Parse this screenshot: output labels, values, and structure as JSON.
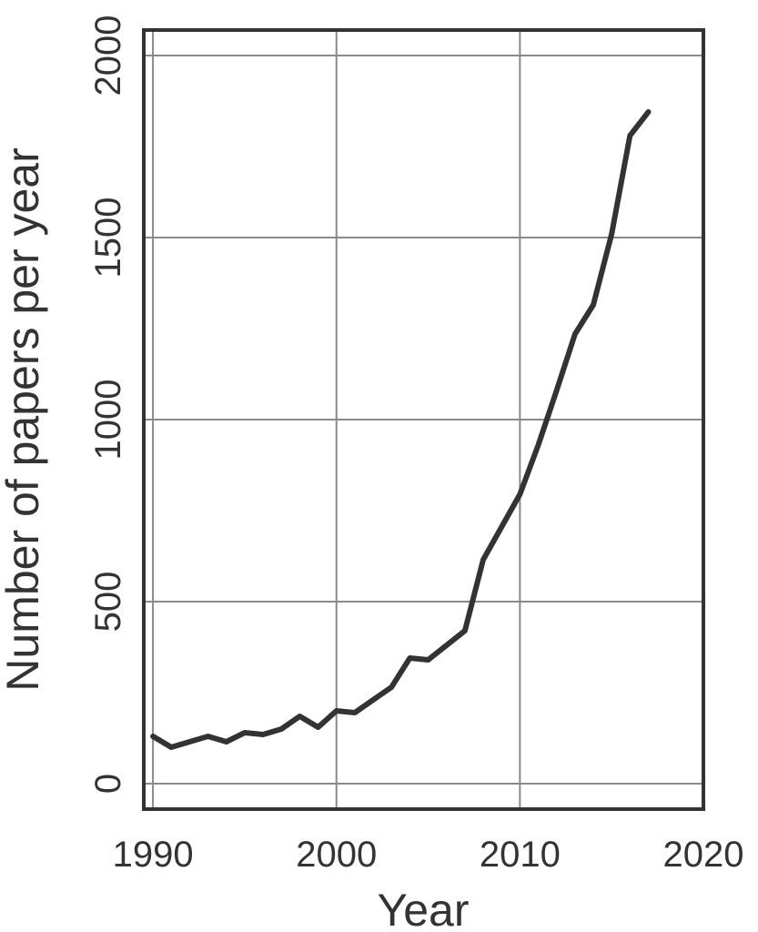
{
  "chart_data": {
    "type": "line",
    "title": "",
    "xlabel": "Year",
    "ylabel": "Number of papers per year",
    "xlim": [
      1989.5,
      2020
    ],
    "ylim": [
      -70,
      2070
    ],
    "xticks": [
      1990,
      2000,
      2010,
      2020
    ],
    "yticks": [
      0,
      500,
      1000,
      1500,
      2000
    ],
    "grid": true,
    "legend": "none",
    "line_color": "#333333",
    "grid_color": "#8a8a8a",
    "series": [
      {
        "x": [
          1990,
          1991,
          1992,
          1993,
          1994,
          1995,
          1996,
          1997,
          1998,
          1999,
          2000,
          2001,
          2002,
          2003,
          2004,
          2005,
          2006,
          2007,
          2008,
          2009,
          2010,
          2011,
          2012,
          2013,
          2014,
          2015,
          2016,
          2017
        ],
        "y": [
          130,
          100,
          115,
          130,
          115,
          140,
          135,
          150,
          185,
          155,
          200,
          195,
          230,
          265,
          345,
          340,
          380,
          420,
          615,
          705,
          795,
          930,
          1080,
          1235,
          1315,
          1510,
          1780,
          1845
        ]
      }
    ]
  }
}
